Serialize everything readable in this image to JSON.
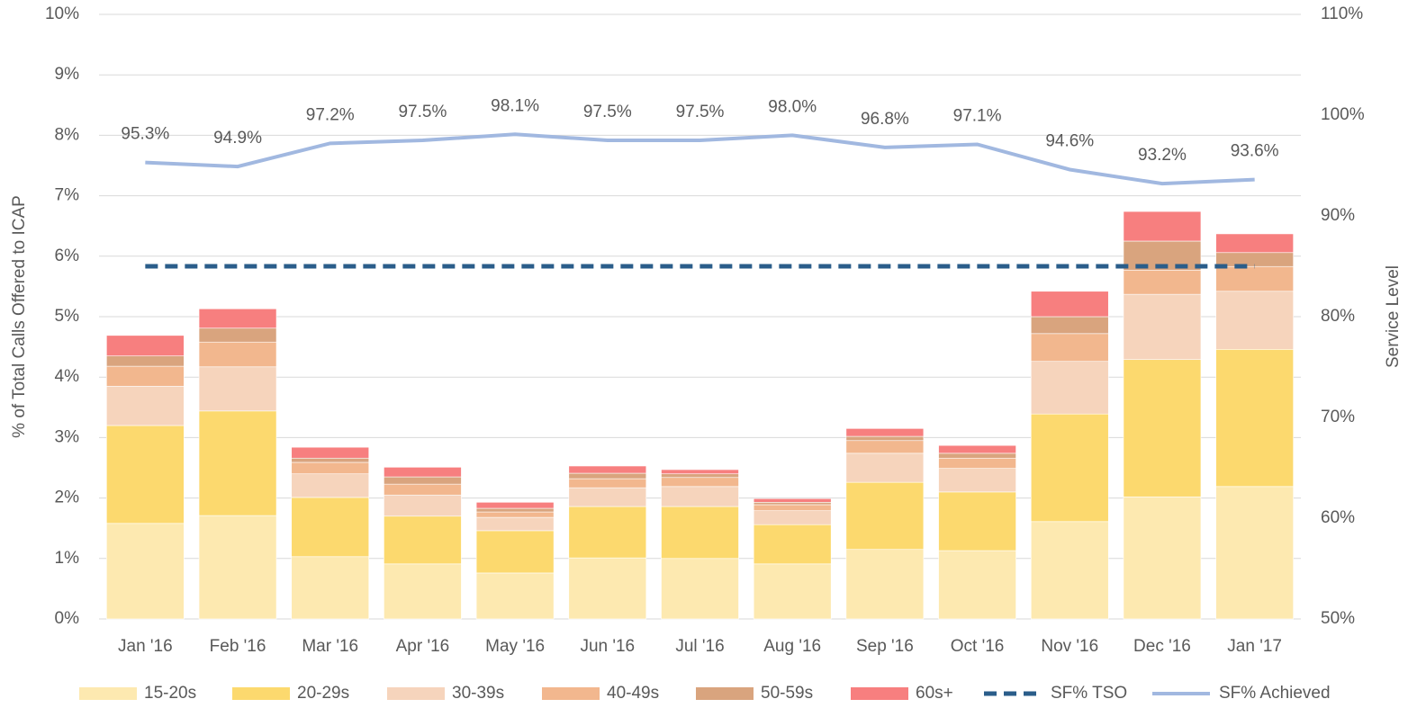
{
  "chart_data": {
    "type": "bar",
    "categories": [
      "Jan '16",
      "Feb '16",
      "Mar '16",
      "Apr '16",
      "May '16",
      "Jun '16",
      "Jul '16",
      "Aug '16",
      "Sep '16",
      "Oct '16",
      "Nov '16",
      "Dec '16",
      "Jan '17"
    ],
    "ylabel": "% of Total Calls Offered to ICAP",
    "y2label": "Service Level",
    "ylim": [
      0,
      10
    ],
    "yticks": [
      {
        "value": 0,
        "label": "0%"
      },
      {
        "value": 1,
        "label": "1%"
      },
      {
        "value": 2,
        "label": "2%"
      },
      {
        "value": 3,
        "label": "3%"
      },
      {
        "value": 4,
        "label": "4%"
      },
      {
        "value": 5,
        "label": "5%"
      },
      {
        "value": 6,
        "label": "6%"
      },
      {
        "value": 7,
        "label": "7%"
      },
      {
        "value": 8,
        "label": "8%"
      },
      {
        "value": 9,
        "label": "9%"
      },
      {
        "value": 10,
        "label": "10%"
      }
    ],
    "y2lim": [
      50,
      110
    ],
    "y2ticks": [
      {
        "value": 50,
        "label": "50%"
      },
      {
        "value": 60,
        "label": "60%"
      },
      {
        "value": 70,
        "label": "70%"
      },
      {
        "value": 80,
        "label": "80%"
      },
      {
        "value": 90,
        "label": "90%"
      },
      {
        "value": 100,
        "label": "100%"
      },
      {
        "value": 110,
        "label": "110%"
      }
    ],
    "grid": true,
    "stacked": true,
    "legend": "bottom",
    "series": [
      {
        "name": "15-20s",
        "color": "#fde9b0",
        "values": [
          1.58,
          1.71,
          1.03,
          0.91,
          0.76,
          1.01,
          1.0,
          0.91,
          1.15,
          1.13,
          1.61,
          2.02,
          2.19
        ]
      },
      {
        "name": "20-29s",
        "color": "#fcd96e",
        "values": [
          1.62,
          1.73,
          0.98,
          0.79,
          0.7,
          0.85,
          0.86,
          0.65,
          1.11,
          0.97,
          1.78,
          2.27,
          2.27
        ]
      },
      {
        "name": "30-39s",
        "color": "#f6d4bc",
        "values": [
          0.65,
          0.73,
          0.39,
          0.35,
          0.22,
          0.31,
          0.33,
          0.23,
          0.48,
          0.39,
          0.87,
          1.08,
          0.96
        ]
      },
      {
        "name": "40-49s",
        "color": "#f2b78e",
        "values": [
          0.33,
          0.41,
          0.19,
          0.18,
          0.09,
          0.15,
          0.15,
          0.1,
          0.21,
          0.17,
          0.46,
          0.4,
          0.41
        ]
      },
      {
        "name": "50-59s",
        "color": "#d9a47e",
        "values": [
          0.17,
          0.23,
          0.07,
          0.12,
          0.06,
          0.09,
          0.06,
          0.04,
          0.07,
          0.08,
          0.28,
          0.48,
          0.23
        ]
      },
      {
        "name": "60s+",
        "color": "#f77f7f",
        "values": [
          0.34,
          0.32,
          0.18,
          0.16,
          0.1,
          0.12,
          0.07,
          0.06,
          0.13,
          0.13,
          0.42,
          0.49,
          0.31
        ]
      },
      {
        "name": "SF% TSO",
        "type": "line",
        "dashed": true,
        "axis": "y2",
        "color": "#2a5d8a",
        "values": [
          85,
          85,
          85,
          85,
          85,
          85,
          85,
          85,
          85,
          85,
          85,
          85,
          85
        ]
      },
      {
        "name": "SF% Achieved",
        "type": "line",
        "axis": "y2",
        "color": "#a1b8e0",
        "values": [
          95.3,
          94.9,
          97.2,
          97.5,
          98.1,
          97.5,
          97.5,
          98.0,
          96.8,
          97.1,
          94.6,
          93.2,
          93.6
        ],
        "value_labels": [
          "95.3%",
          "94.9%",
          "97.2%",
          "97.5%",
          "98.1%",
          "97.5%",
          "97.5%",
          "98.0%",
          "96.8%",
          "97.1%",
          "94.6%",
          "93.2%",
          "93.6%"
        ]
      }
    ]
  }
}
